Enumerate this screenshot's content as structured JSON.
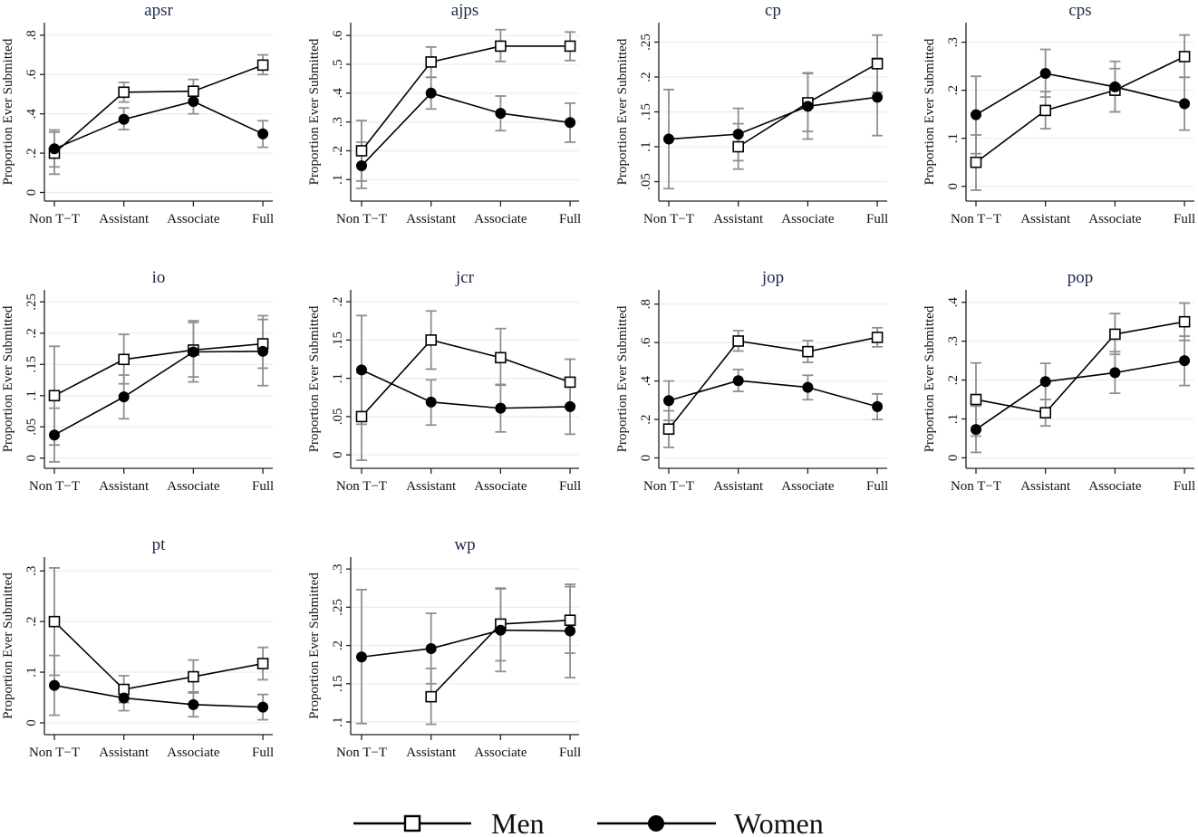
{
  "chart_data": {
    "type": "line",
    "figure_description": "Proportion ever submitted by rank and gender, small multiples by journal, with confidence intervals",
    "categories": [
      "Non T−T",
      "Assistant",
      "Associate",
      "Full"
    ],
    "ylabel": "Proportion Ever Submitted",
    "legend": {
      "placement": "bottom-center",
      "entries": [
        {
          "name": "Men",
          "marker": "hollow-square"
        },
        {
          "name": "Women",
          "marker": "filled-circle"
        }
      ]
    },
    "colors": {
      "lines": "#000000",
      "ci": "#8f8f8f",
      "grid": "#e6eef0",
      "title": "#1e2a4a"
    },
    "grid": true,
    "panels": [
      {
        "title": "apsr",
        "ylim": [
          -0.03,
          0.85
        ],
        "yticks": [
          0,
          0.2,
          0.4,
          0.6,
          0.8
        ],
        "ytick_labels": [
          "0",
          ".2",
          ".4",
          ".6",
          ".8"
        ],
        "series": [
          {
            "name": "Men",
            "values": [
              0.2,
              0.51,
              0.515,
              0.648
            ],
            "ci_low": [
              0.093,
              0.46,
              0.46,
              0.6
            ],
            "ci_high": [
              0.307,
              0.56,
              0.575,
              0.7
            ]
          },
          {
            "name": "Women",
            "values": [
              0.222,
              0.372,
              0.463,
              0.298
            ],
            "ci_low": [
              0.13,
              0.32,
              0.4,
              0.23
            ],
            "ci_high": [
              0.318,
              0.43,
              0.53,
              0.365
            ]
          }
        ]
      },
      {
        "title": "ajps",
        "ylim": [
          0.035,
          0.635
        ],
        "yticks": [
          0.1,
          0.2,
          0.3,
          0.4,
          0.5,
          0.6
        ],
        "ytick_labels": [
          ".1",
          ".2",
          ".3",
          ".4",
          ".5",
          ".6"
        ],
        "series": [
          {
            "name": "Men",
            "values": [
              0.2,
              0.508,
              0.563,
              0.563
            ],
            "ci_low": [
              0.095,
              0.455,
              0.51,
              0.513
            ],
            "ci_high": [
              0.305,
              0.56,
              0.62,
              0.612
            ]
          },
          {
            "name": "Women",
            "values": [
              0.148,
              0.4,
              0.33,
              0.298
            ],
            "ci_low": [
              0.07,
              0.345,
              0.27,
              0.23
            ],
            "ci_high": [
              0.23,
              0.455,
              0.39,
              0.365
            ]
          }
        ]
      },
      {
        "title": "cp",
        "ylim": [
          0.026,
          0.274
        ],
        "yticks": [
          0.05,
          0.1,
          0.15,
          0.2,
          0.25
        ],
        "ytick_labels": [
          ".05",
          ".1",
          ".15",
          ".2",
          ".25"
        ],
        "series": [
          {
            "name": "Men",
            "values": [
              null,
              0.1,
              0.163,
              0.219
            ],
            "ci_low": [
              null,
              0.068,
              0.122,
              0.178
            ],
            "ci_high": [
              null,
              0.133,
              0.205,
              0.26
            ]
          },
          {
            "name": "Women",
            "values": [
              0.111,
              0.118,
              0.158,
              0.171
            ],
            "ci_low": [
              0.04,
              0.08,
              0.111,
              0.116
            ],
            "ci_high": [
              0.182,
              0.155,
              0.206,
              0.227
            ]
          }
        ]
      },
      {
        "title": "cps",
        "ylim": [
          -0.025,
          0.335
        ],
        "yticks": [
          0,
          0.1,
          0.2,
          0.3
        ],
        "ytick_labels": [
          "0",
          ".1",
          ".2",
          ".3"
        ],
        "series": [
          {
            "name": "Men",
            "values": [
              0.05,
              0.158,
              0.2,
              0.27
            ],
            "ci_low": [
              -0.008,
              0.12,
              0.155,
              0.227
            ],
            "ci_high": [
              0.107,
              0.197,
              0.245,
              0.315
            ]
          },
          {
            "name": "Women",
            "values": [
              0.149,
              0.235,
              0.207,
              0.172
            ],
            "ci_low": [
              0.068,
              0.186,
              0.155,
              0.117
            ],
            "ci_high": [
              0.229,
              0.285,
              0.26,
              0.227
            ]
          }
        ]
      },
      {
        "title": "io",
        "ylim": [
          -0.012,
          0.265
        ],
        "yticks": [
          0,
          0.05,
          0.1,
          0.15,
          0.2,
          0.25
        ],
        "ytick_labels": [
          "0",
          ".05",
          ".1",
          ".15",
          ".2",
          ".25"
        ],
        "series": [
          {
            "name": "Men",
            "values": [
              0.1,
              0.158,
              0.173,
              0.183
            ],
            "ci_low": [
              0.021,
              0.119,
              0.13,
              0.144
            ],
            "ci_high": [
              0.179,
              0.198,
              0.22,
              0.228
            ]
          },
          {
            "name": "Women",
            "values": [
              0.037,
              0.098,
              0.17,
              0.171
            ],
            "ci_low": [
              -0.006,
              0.063,
              0.122,
              0.116
            ],
            "ci_high": [
              0.08,
              0.133,
              0.217,
              0.222
            ]
          }
        ]
      },
      {
        "title": "jcr",
        "ylim": [
          -0.014,
          0.212
        ],
        "yticks": [
          0,
          0.05,
          0.1,
          0.15,
          0.2
        ],
        "ytick_labels": [
          "0",
          ".05",
          ".1",
          ".15",
          ".2"
        ],
        "series": [
          {
            "name": "Men",
            "values": [
              0.05,
              0.15,
              0.127,
              0.095
            ],
            "ci_low": [
              -0.007,
              0.112,
              0.091,
              0.065
            ],
            "ci_high": [
              0.107,
              0.188,
              0.165,
              0.125
            ]
          },
          {
            "name": "Women",
            "values": [
              0.111,
              0.069,
              0.061,
              0.063
            ],
            "ci_low": [
              0.04,
              0.039,
              0.03,
              0.027
            ],
            "ci_high": [
              0.182,
              0.098,
              0.092,
              0.098
            ]
          }
        ]
      },
      {
        "title": "jop",
        "ylim": [
          -0.04,
          0.86
        ],
        "yticks": [
          0,
          0.2,
          0.4,
          0.6,
          0.8
        ],
        "ytick_labels": [
          "0",
          ".2",
          ".4",
          ".6",
          ".8"
        ],
        "series": [
          {
            "name": "Men",
            "values": [
              0.15,
              0.608,
              0.553,
              0.627
            ],
            "ci_low": [
              0.055,
              0.556,
              0.497,
              0.578
            ],
            "ci_high": [
              0.245,
              0.662,
              0.61,
              0.677
            ]
          },
          {
            "name": "Women",
            "values": [
              0.298,
              0.402,
              0.367,
              0.267
            ],
            "ci_low": [
              0.195,
              0.346,
              0.303,
              0.2
            ],
            "ci_high": [
              0.4,
              0.46,
              0.43,
              0.333
            ]
          }
        ]
      },
      {
        "title": "pop",
        "ylim": [
          -0.02,
          0.425
        ],
        "yticks": [
          0,
          0.1,
          0.2,
          0.3,
          0.4
        ],
        "ytick_labels": [
          "0",
          ".1",
          ".2",
          ".3",
          ".4"
        ],
        "series": [
          {
            "name": "Men",
            "values": [
              0.15,
              0.116,
              0.318,
              0.35
            ],
            "ci_low": [
              0.056,
              0.082,
              0.266,
              0.302
            ],
            "ci_high": [
              0.244,
              0.15,
              0.371,
              0.398
            ]
          },
          {
            "name": "Women",
            "values": [
              0.073,
              0.196,
              0.219,
              0.25
            ],
            "ci_low": [
              0.014,
              0.15,
              0.166,
              0.186
            ],
            "ci_high": [
              0.133,
              0.243,
              0.273,
              0.313
            ]
          }
        ]
      },
      {
        "title": "pt",
        "ylim": [
          -0.018,
          0.322
        ],
        "yticks": [
          0,
          0.1,
          0.2,
          0.3
        ],
        "ytick_labels": [
          "0",
          ".1",
          ".2",
          ".3"
        ],
        "series": [
          {
            "name": "Men",
            "values": [
              0.2,
              0.066,
              0.091,
              0.117
            ],
            "ci_low": [
              0.094,
              0.04,
              0.059,
              0.085
            ],
            "ci_high": [
              0.306,
              0.093,
              0.124,
              0.149
            ]
          },
          {
            "name": "Women",
            "values": [
              0.074,
              0.049,
              0.036,
              0.031
            ],
            "ci_low": [
              0.015,
              0.024,
              0.012,
              0.006
            ],
            "ci_high": [
              0.133,
              0.074,
              0.061,
              0.056
            ]
          }
        ]
      },
      {
        "title": "wp",
        "ylim": [
          0.087,
          0.312
        ],
        "yticks": [
          0.1,
          0.15,
          0.2,
          0.25,
          0.3
        ],
        "ytick_labels": [
          ".1",
          ".15",
          ".2",
          ".25",
          ".3"
        ],
        "series": [
          {
            "name": "Men",
            "values": [
              null,
              0.133,
              0.228,
              0.233
            ],
            "ci_low": [
              null,
              0.097,
              0.18,
              0.19
            ],
            "ci_high": [
              null,
              0.17,
              0.275,
              0.277
            ]
          },
          {
            "name": "Women",
            "values": [
              0.185,
              0.196,
              0.22,
              0.219
            ],
            "ci_low": [
              0.098,
              0.15,
              0.166,
              0.158
            ],
            "ci_high": [
              0.273,
              0.242,
              0.274,
              0.28
            ]
          }
        ]
      }
    ]
  }
}
